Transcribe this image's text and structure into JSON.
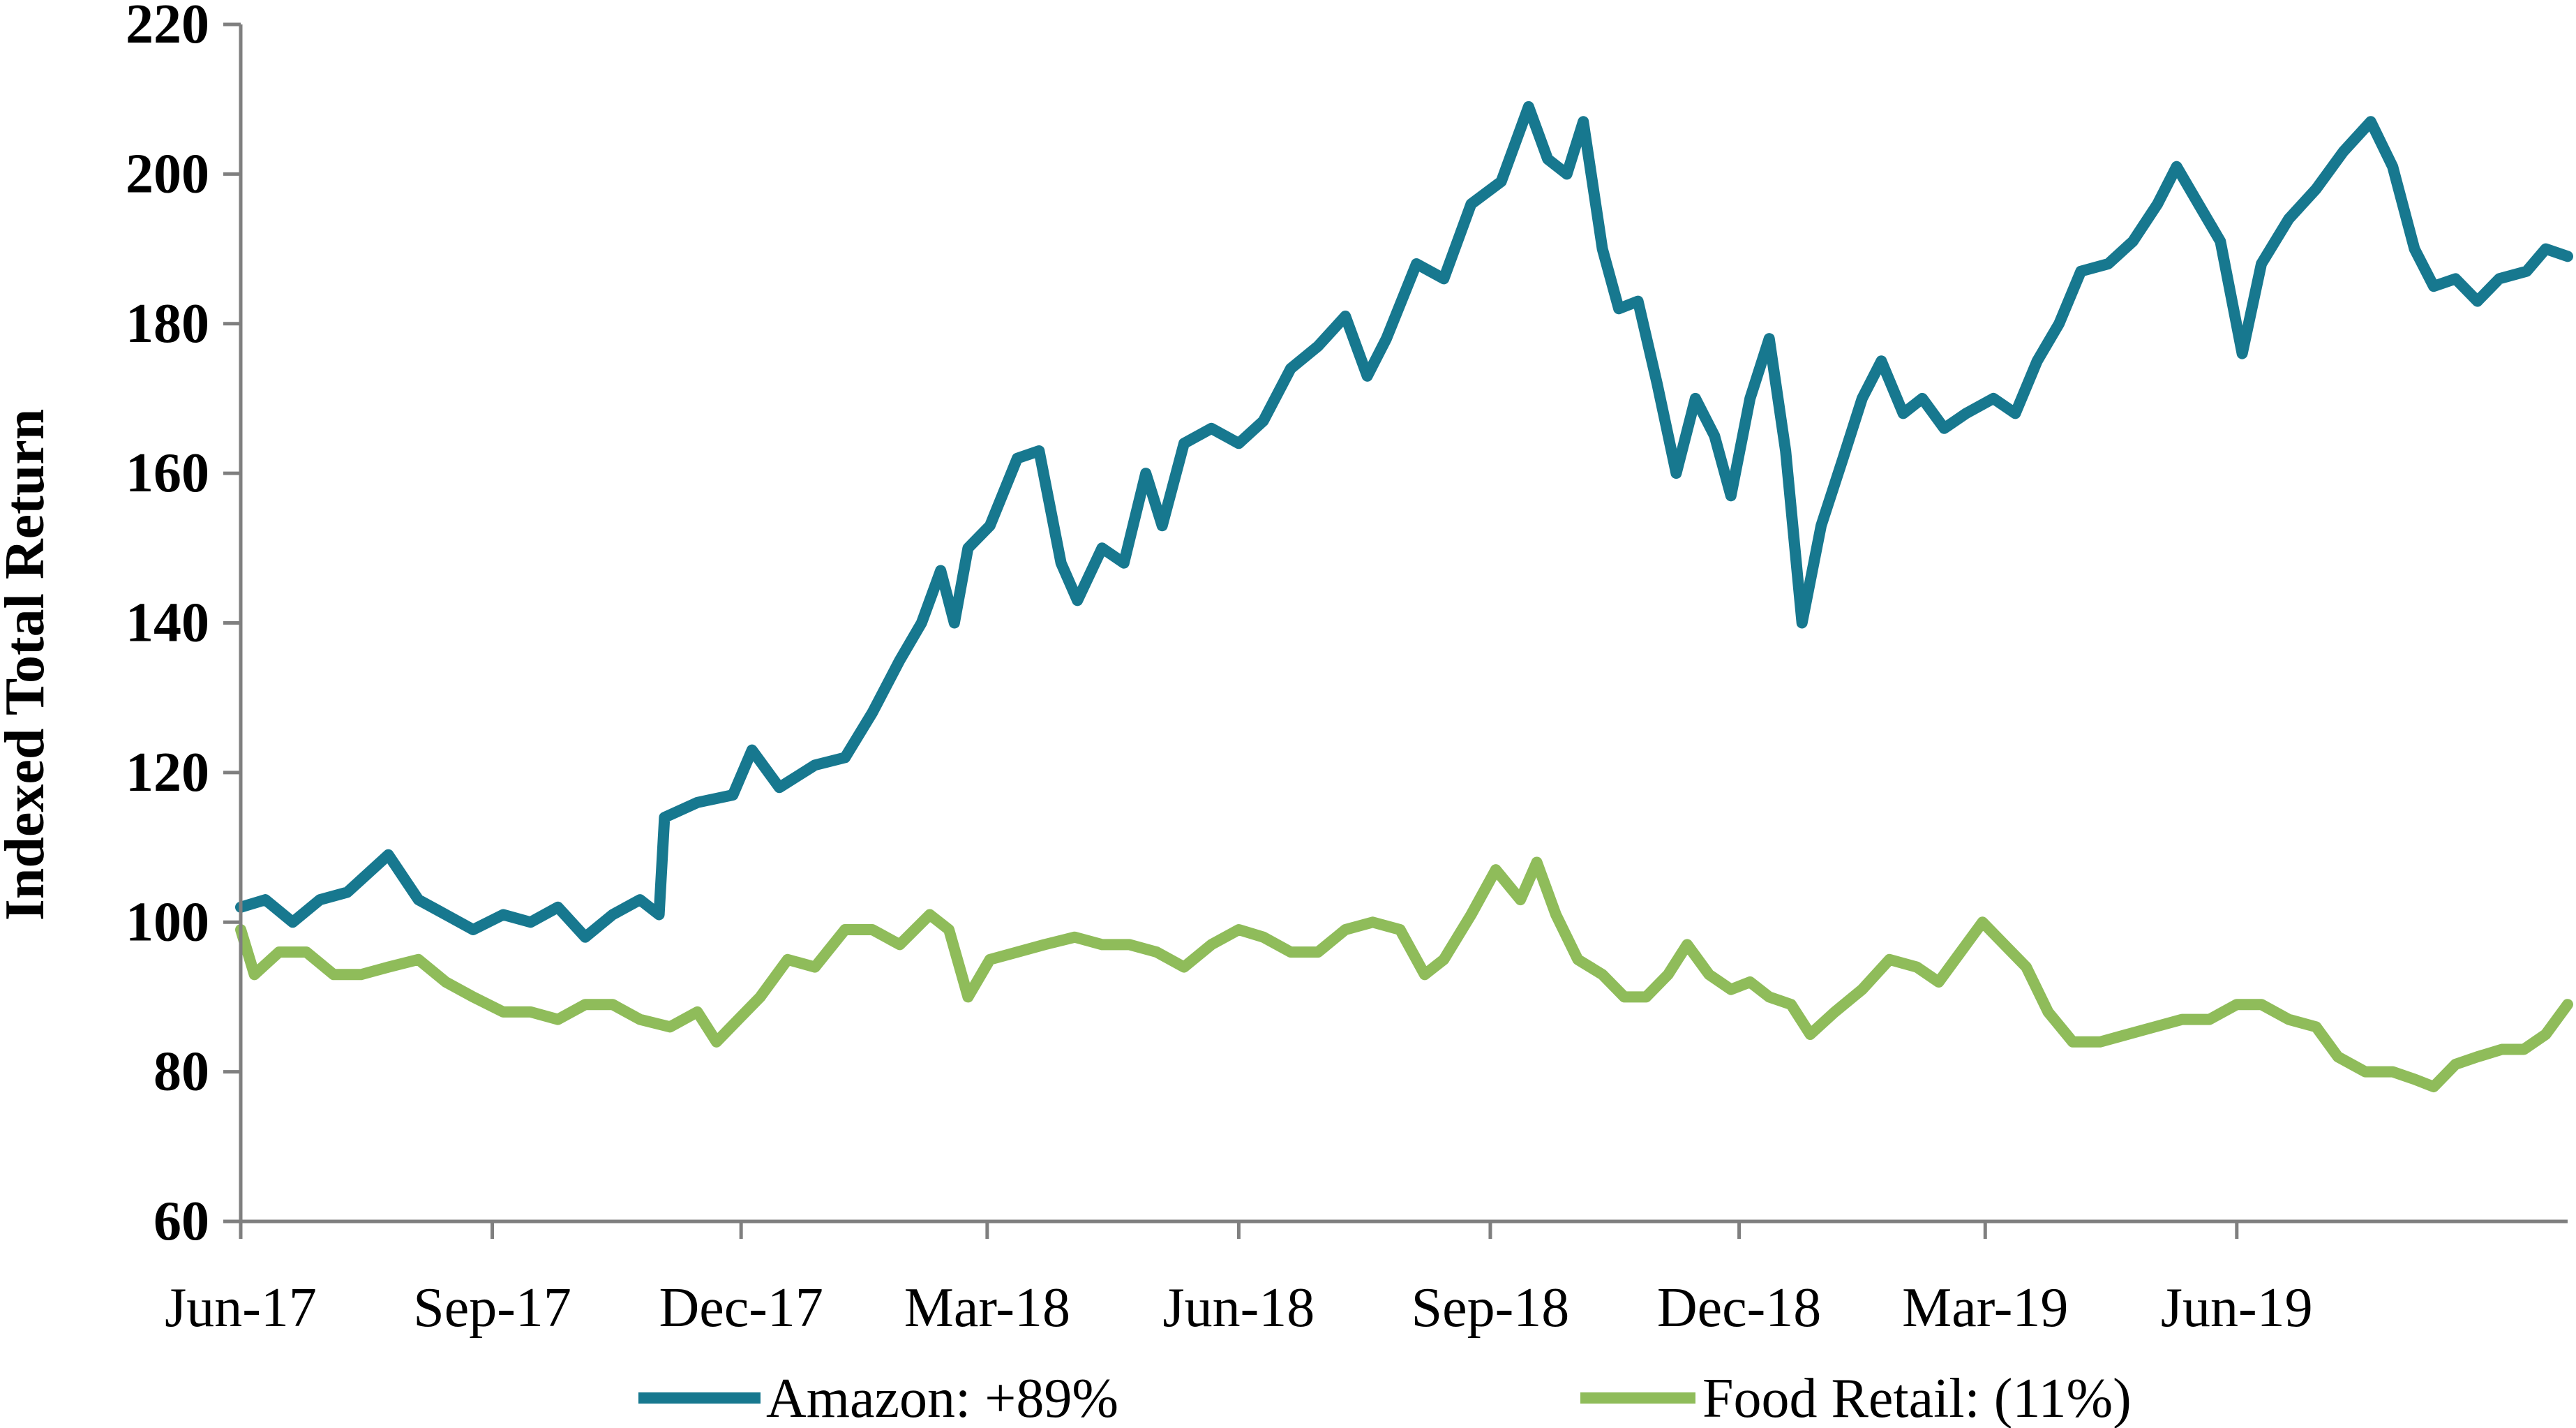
{
  "chart_data": {
    "type": "line",
    "title": "",
    "xlabel": "",
    "ylabel": "Indexed Total Return",
    "ylim": [
      60,
      220
    ],
    "yticks": [
      60,
      80,
      100,
      120,
      140,
      160,
      180,
      200,
      220
    ],
    "xlim": [
      "2017-06-01",
      "2019-09-30"
    ],
    "xticks": [
      {
        "date": "2017-06-01",
        "label": "Jun-17"
      },
      {
        "date": "2017-09-01",
        "label": "Sep-17"
      },
      {
        "date": "2017-12-01",
        "label": "Dec-17"
      },
      {
        "date": "2018-03-01",
        "label": "Mar-18"
      },
      {
        "date": "2018-06-01",
        "label": "Jun-18"
      },
      {
        "date": "2018-09-01",
        "label": "Sep-18"
      },
      {
        "date": "2018-12-01",
        "label": "Dec-18"
      },
      {
        "date": "2019-03-01",
        "label": "Mar-19"
      },
      {
        "date": "2019-06-01",
        "label": "Jun-19"
      }
    ],
    "grid": false,
    "legend": "bottom",
    "series": [
      {
        "name": "Amazon: +89%",
        "color": "#17788f",
        "points": [
          [
            "2017-06-01",
            102
          ],
          [
            "2017-06-10",
            103
          ],
          [
            "2017-06-20",
            100
          ],
          [
            "2017-06-30",
            103
          ],
          [
            "2017-07-10",
            104
          ],
          [
            "2017-07-25",
            109
          ],
          [
            "2017-08-05",
            103
          ],
          [
            "2017-08-15",
            101
          ],
          [
            "2017-08-25",
            99
          ],
          [
            "2017-09-05",
            101
          ],
          [
            "2017-09-15",
            100
          ],
          [
            "2017-09-25",
            102
          ],
          [
            "2017-10-05",
            98
          ],
          [
            "2017-10-15",
            101
          ],
          [
            "2017-10-25",
            103
          ],
          [
            "2017-11-01",
            101
          ],
          [
            "2017-11-03",
            114
          ],
          [
            "2017-11-15",
            116
          ],
          [
            "2017-11-28",
            117
          ],
          [
            "2017-12-05",
            123
          ],
          [
            "2017-12-15",
            118
          ],
          [
            "2017-12-28",
            121
          ],
          [
            "2018-01-08",
            122
          ],
          [
            "2018-01-18",
            128
          ],
          [
            "2018-01-28",
            135
          ],
          [
            "2018-02-05",
            140
          ],
          [
            "2018-02-12",
            147
          ],
          [
            "2018-02-17",
            140
          ],
          [
            "2018-02-22",
            150
          ],
          [
            "2018-03-02",
            153
          ],
          [
            "2018-03-12",
            162
          ],
          [
            "2018-03-20",
            163
          ],
          [
            "2018-03-28",
            148
          ],
          [
            "2018-04-03",
            143
          ],
          [
            "2018-04-12",
            150
          ],
          [
            "2018-04-20",
            148
          ],
          [
            "2018-04-28",
            160
          ],
          [
            "2018-05-04",
            153
          ],
          [
            "2018-05-12",
            164
          ],
          [
            "2018-05-22",
            166
          ],
          [
            "2018-06-01",
            164
          ],
          [
            "2018-06-10",
            167
          ],
          [
            "2018-06-20",
            174
          ],
          [
            "2018-06-30",
            177
          ],
          [
            "2018-07-10",
            181
          ],
          [
            "2018-07-18",
            173
          ],
          [
            "2018-07-25",
            178
          ],
          [
            "2018-08-05",
            188
          ],
          [
            "2018-08-15",
            186
          ],
          [
            "2018-08-25",
            196
          ],
          [
            "2018-09-05",
            199
          ],
          [
            "2018-09-15",
            209
          ],
          [
            "2018-09-22",
            202
          ],
          [
            "2018-09-29",
            200
          ],
          [
            "2018-10-05",
            207
          ],
          [
            "2018-10-12",
            190
          ],
          [
            "2018-10-18",
            182
          ],
          [
            "2018-10-25",
            183
          ],
          [
            "2018-11-01",
            172
          ],
          [
            "2018-11-08",
            160
          ],
          [
            "2018-11-15",
            170
          ],
          [
            "2018-11-22",
            165
          ],
          [
            "2018-11-28",
            157
          ],
          [
            "2018-12-05",
            170
          ],
          [
            "2018-12-12",
            178
          ],
          [
            "2018-12-18",
            163
          ],
          [
            "2018-12-24",
            140
          ],
          [
            "2018-12-31",
            153
          ],
          [
            "2019-01-08",
            162
          ],
          [
            "2019-01-15",
            170
          ],
          [
            "2019-01-22",
            175
          ],
          [
            "2019-01-30",
            168
          ],
          [
            "2019-02-06",
            170
          ],
          [
            "2019-02-14",
            166
          ],
          [
            "2019-02-22",
            168
          ],
          [
            "2019-03-04",
            170
          ],
          [
            "2019-03-12",
            168
          ],
          [
            "2019-03-20",
            175
          ],
          [
            "2019-03-28",
            180
          ],
          [
            "2019-04-05",
            187
          ],
          [
            "2019-04-15",
            188
          ],
          [
            "2019-04-24",
            191
          ],
          [
            "2019-05-03",
            196
          ],
          [
            "2019-05-10",
            201
          ],
          [
            "2019-05-18",
            196
          ],
          [
            "2019-05-26",
            191
          ],
          [
            "2019-06-03",
            176
          ],
          [
            "2019-06-10",
            188
          ],
          [
            "2019-06-20",
            194
          ],
          [
            "2019-06-30",
            198
          ],
          [
            "2019-07-10",
            203
          ],
          [
            "2019-07-20",
            207
          ],
          [
            "2019-07-28",
            201
          ],
          [
            "2019-08-05",
            190
          ],
          [
            "2019-08-12",
            185
          ],
          [
            "2019-08-20",
            186
          ],
          [
            "2019-08-28",
            183
          ],
          [
            "2019-09-05",
            186
          ],
          [
            "2019-09-15",
            187
          ],
          [
            "2019-09-22",
            190
          ],
          [
            "2019-09-30",
            189
          ]
        ]
      },
      {
        "name": "Food Retail: (11%)",
        "color": "#8fbc5a",
        "points": [
          [
            "2017-06-01",
            99
          ],
          [
            "2017-06-06",
            93
          ],
          [
            "2017-06-15",
            96
          ],
          [
            "2017-06-25",
            96
          ],
          [
            "2017-07-05",
            93
          ],
          [
            "2017-07-15",
            93
          ],
          [
            "2017-07-25",
            94
          ],
          [
            "2017-08-05",
            95
          ],
          [
            "2017-08-15",
            92
          ],
          [
            "2017-08-25",
            90
          ],
          [
            "2017-09-05",
            88
          ],
          [
            "2017-09-15",
            88
          ],
          [
            "2017-09-25",
            87
          ],
          [
            "2017-10-05",
            89
          ],
          [
            "2017-10-15",
            89
          ],
          [
            "2017-10-25",
            87
          ],
          [
            "2017-11-05",
            86
          ],
          [
            "2017-11-15",
            88
          ],
          [
            "2017-11-22",
            84
          ],
          [
            "2017-11-30",
            87
          ],
          [
            "2017-12-08",
            90
          ],
          [
            "2017-12-18",
            95
          ],
          [
            "2017-12-28",
            94
          ],
          [
            "2018-01-08",
            99
          ],
          [
            "2018-01-18",
            99
          ],
          [
            "2018-01-28",
            97
          ],
          [
            "2018-02-08",
            101
          ],
          [
            "2018-02-15",
            99
          ],
          [
            "2018-02-22",
            90
          ],
          [
            "2018-03-02",
            95
          ],
          [
            "2018-03-12",
            96
          ],
          [
            "2018-03-22",
            97
          ],
          [
            "2018-04-02",
            98
          ],
          [
            "2018-04-12",
            97
          ],
          [
            "2018-04-22",
            97
          ],
          [
            "2018-05-02",
            96
          ],
          [
            "2018-05-12",
            94
          ],
          [
            "2018-05-22",
            97
          ],
          [
            "2018-06-01",
            99
          ],
          [
            "2018-06-10",
            98
          ],
          [
            "2018-06-20",
            96
          ],
          [
            "2018-06-30",
            96
          ],
          [
            "2018-07-10",
            99
          ],
          [
            "2018-07-20",
            100
          ],
          [
            "2018-07-30",
            99
          ],
          [
            "2018-08-08",
            93
          ],
          [
            "2018-08-15",
            95
          ],
          [
            "2018-08-25",
            101
          ],
          [
            "2018-09-03",
            107
          ],
          [
            "2018-09-12",
            103
          ],
          [
            "2018-09-18",
            108
          ],
          [
            "2018-09-25",
            101
          ],
          [
            "2018-10-03",
            95
          ],
          [
            "2018-10-12",
            93
          ],
          [
            "2018-10-20",
            90
          ],
          [
            "2018-10-28",
            90
          ],
          [
            "2018-11-05",
            93
          ],
          [
            "2018-11-12",
            97
          ],
          [
            "2018-11-20",
            93
          ],
          [
            "2018-11-28",
            91
          ],
          [
            "2018-12-05",
            92
          ],
          [
            "2018-12-12",
            90
          ],
          [
            "2018-12-20",
            89
          ],
          [
            "2018-12-27",
            85
          ],
          [
            "2019-01-05",
            88
          ],
          [
            "2019-01-15",
            91
          ],
          [
            "2019-01-25",
            95
          ],
          [
            "2019-02-04",
            94
          ],
          [
            "2019-02-12",
            92
          ],
          [
            "2019-02-20",
            96
          ],
          [
            "2019-02-28",
            100
          ],
          [
            "2019-03-08",
            97
          ],
          [
            "2019-03-16",
            94
          ],
          [
            "2019-03-24",
            88
          ],
          [
            "2019-04-02",
            84
          ],
          [
            "2019-04-12",
            84
          ],
          [
            "2019-04-22",
            85
          ],
          [
            "2019-05-02",
            86
          ],
          [
            "2019-05-12",
            87
          ],
          [
            "2019-05-22",
            87
          ],
          [
            "2019-06-01",
            89
          ],
          [
            "2019-06-10",
            89
          ],
          [
            "2019-06-20",
            87
          ],
          [
            "2019-06-30",
            86
          ],
          [
            "2019-07-08",
            82
          ],
          [
            "2019-07-18",
            80
          ],
          [
            "2019-07-28",
            80
          ],
          [
            "2019-08-05",
            79
          ],
          [
            "2019-08-12",
            78
          ],
          [
            "2019-08-20",
            81
          ],
          [
            "2019-08-28",
            82
          ],
          [
            "2019-09-06",
            83
          ],
          [
            "2019-09-14",
            83
          ],
          [
            "2019-09-22",
            85
          ],
          [
            "2019-09-30",
            89
          ]
        ]
      }
    ]
  }
}
